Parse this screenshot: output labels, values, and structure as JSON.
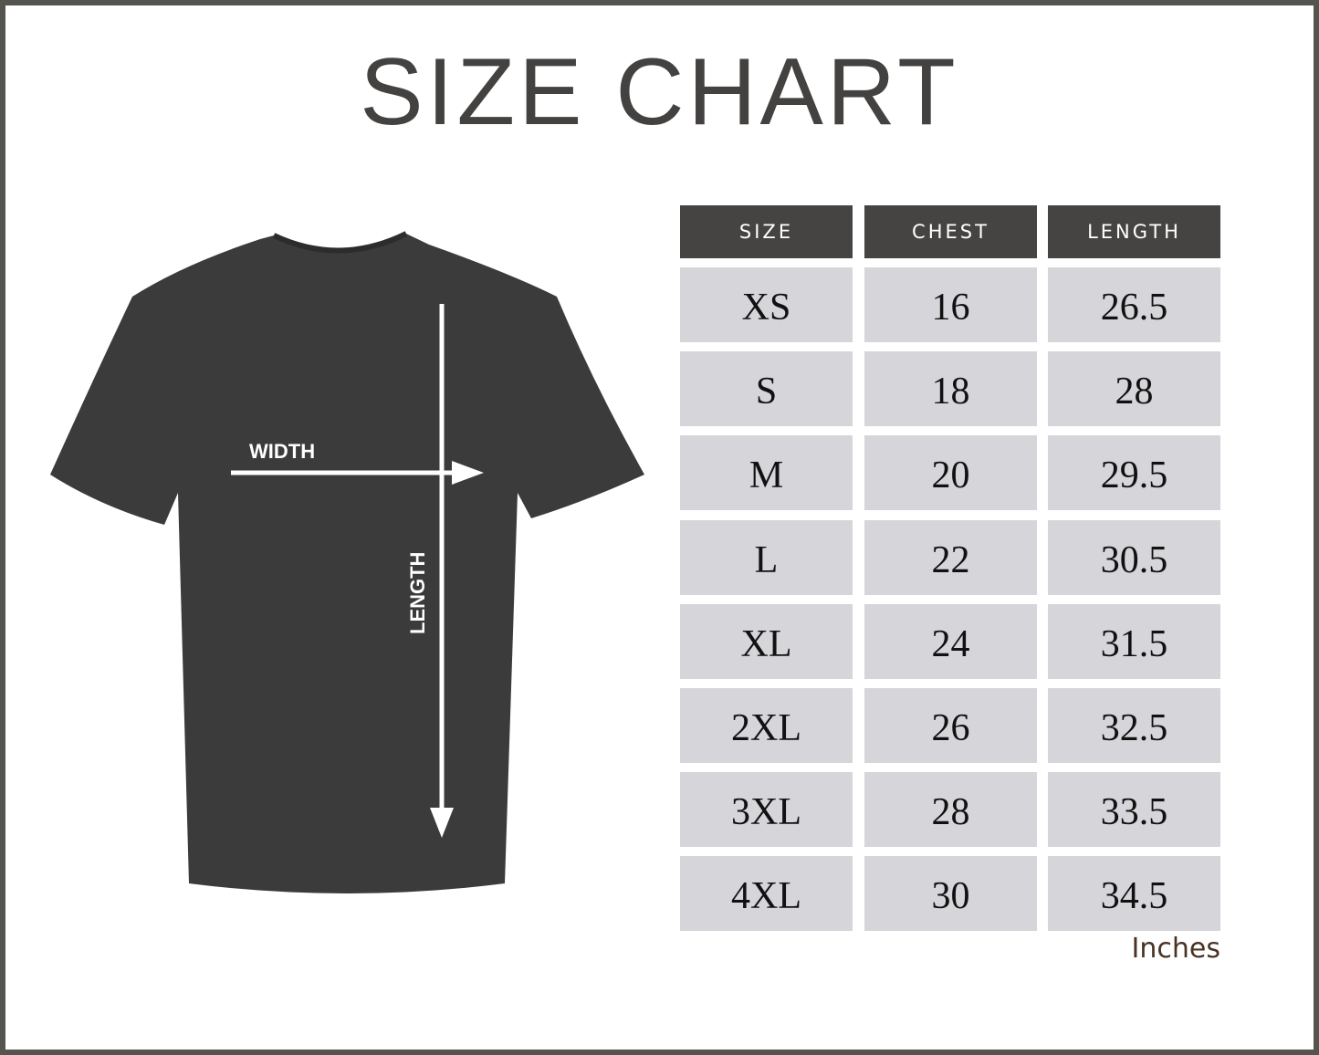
{
  "title": "SIZE CHART",
  "diagram": {
    "width_label": "WIDTH",
    "length_label": "LENGTH",
    "shirt_color": "#3b3b3b"
  },
  "table": {
    "headers": [
      "SIZE",
      "CHEST",
      "LENGTH"
    ],
    "rows": [
      [
        "XS",
        "16",
        "26.5"
      ],
      [
        "S",
        "18",
        "28"
      ],
      [
        "M",
        "20",
        "29.5"
      ],
      [
        "L",
        "22",
        "30.5"
      ],
      [
        "XL",
        "24",
        "31.5"
      ],
      [
        "2XL",
        "26",
        "32.5"
      ],
      [
        "3XL",
        "28",
        "33.5"
      ],
      [
        "4XL",
        "30",
        "34.5"
      ]
    ],
    "unit": "Inches",
    "header_color": "#464442",
    "cell_color": "#d6d6da"
  }
}
